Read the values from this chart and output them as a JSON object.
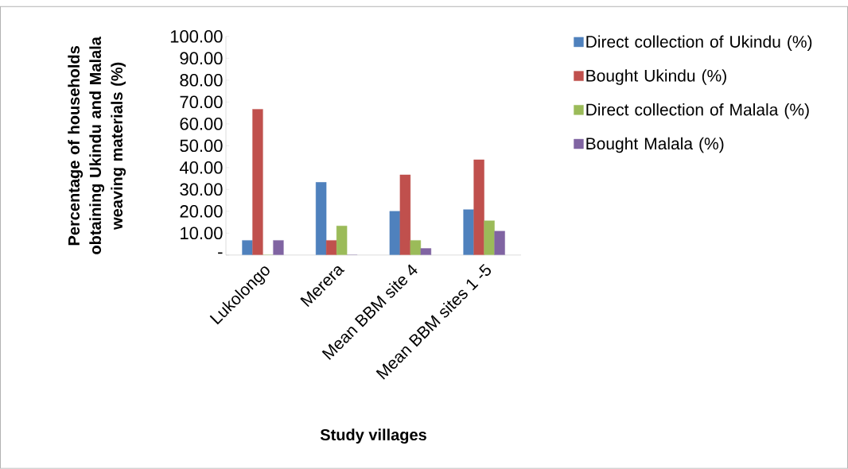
{
  "chart_data": {
    "type": "bar",
    "xlabel": "Study villages",
    "ylabel": "Percentage of households obtaining Ukindu and Malala weaving materials (%)",
    "categories": [
      "Lukolongo",
      "Merera",
      "Mean BBM site 4",
      "Mean BBM sites 1 -5"
    ],
    "series": [
      {
        "name": "Direct collection of Ukindu (%)",
        "color": "#4f81bd",
        "values": [
          6.7,
          33.3,
          20.0,
          20.8
        ]
      },
      {
        "name": "Bought Ukindu (%)",
        "color": "#c0504d",
        "values": [
          66.7,
          6.7,
          36.7,
          43.6
        ]
      },
      {
        "name": "Direct collection of Malala (%)",
        "color": "#9bbb59",
        "values": [
          0,
          13.3,
          6.7,
          15.7
        ]
      },
      {
        "name": "Bought Malala (%)",
        "color": "#8064a2",
        "values": [
          6.7,
          0,
          3.0,
          10.9
        ]
      }
    ],
    "ylim": [
      0,
      100
    ],
    "yticks": [
      {
        "value": 0,
        "label": "-"
      },
      {
        "value": 10,
        "label": "10.00"
      },
      {
        "value": 20,
        "label": "20.00"
      },
      {
        "value": 30,
        "label": "30.00"
      },
      {
        "value": 40,
        "label": "40.00"
      },
      {
        "value": 50,
        "label": "50.00"
      },
      {
        "value": 60,
        "label": "60.00"
      },
      {
        "value": 70,
        "label": "70.00"
      },
      {
        "value": 80,
        "label": "80.00"
      },
      {
        "value": 90,
        "label": "90.00"
      },
      {
        "value": 100,
        "label": "100.00"
      }
    ],
    "grid": false,
    "legend": "right"
  }
}
